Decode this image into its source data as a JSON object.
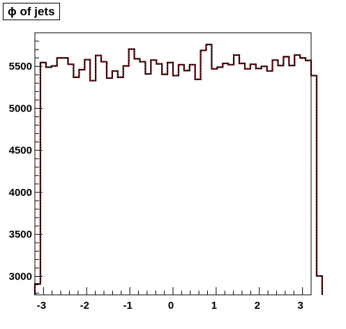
{
  "chart_data": {
    "type": "step",
    "title": "ϕ of jets",
    "xlabel": "",
    "ylabel": "",
    "xlim": [
      -3.2,
      3.2
    ],
    "ylim": [
      2780,
      5900
    ],
    "x_ticks": [
      -3,
      -2,
      -1,
      0,
      1,
      2,
      3
    ],
    "x_tick_labels": [
      "-3",
      "-2",
      "-1",
      "0",
      "1",
      "2",
      "3"
    ],
    "y_ticks": [
      3000,
      3500,
      4000,
      4500,
      5000,
      5500
    ],
    "y_tick_labels": [
      "3000",
      "3500",
      "4000",
      "4500",
      "5000",
      "5500"
    ],
    "bin_edges_start": -3.2,
    "bin_width": 0.128,
    "series": [
      {
        "color_outer": "#000000",
        "color_inner": "#cc0000",
        "values": [
          2910,
          5545,
          5490,
          5505,
          5600,
          5600,
          5525,
          5370,
          5460,
          5580,
          5330,
          5630,
          5555,
          5360,
          5445,
          5370,
          5505,
          5705,
          5590,
          5555,
          5410,
          5575,
          5530,
          5405,
          5545,
          5390,
          5520,
          5450,
          5520,
          5345,
          5690,
          5760,
          5470,
          5490,
          5535,
          5520,
          5635,
          5535,
          5470,
          5525,
          5475,
          5500,
          5445,
          5575,
          5510,
          5615,
          5510,
          5635,
          5600,
          5570,
          5390,
          3005
        ]
      }
    ]
  }
}
